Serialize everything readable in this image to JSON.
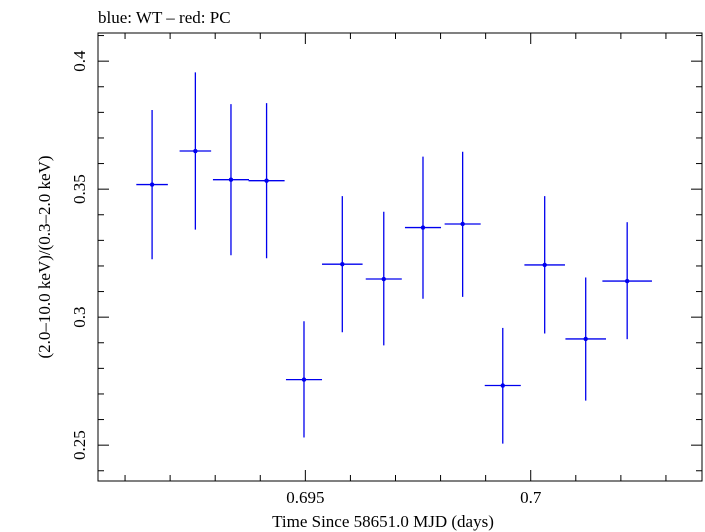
{
  "chart_data": {
    "type": "scatter",
    "title": "blue: WT – red: PC",
    "xlabel": "Time Since 58651.0 MJD (days)",
    "ylabel": "(2.0–10.0 keV)/(0.3–2.0 keV)",
    "xlim": [
      0.6904,
      0.7038
    ],
    "ylim": [
      0.236,
      0.411
    ],
    "x_ticks": [
      0.695,
      0.7
    ],
    "x_tick_labels": [
      "0.695",
      "0.7"
    ],
    "y_ticks": [
      0.25,
      0.3,
      0.35,
      0.4
    ],
    "y_tick_labels": [
      "0.25",
      "0.3",
      "0.35",
      "0.4"
    ],
    "grid": false,
    "series": [
      {
        "color": "#0000ee",
        "points": [
          {
            "x": 0.6916,
            "xerr": 0.00035,
            "y": 0.3518,
            "ylo": 0.3226,
            "yhi": 0.3809
          },
          {
            "x": 0.69256,
            "xerr": 0.00035,
            "y": 0.3649,
            "ylo": 0.3342,
            "yhi": 0.3956
          },
          {
            "x": 0.69335,
            "xerr": 0.0004,
            "y": 0.3537,
            "ylo": 0.3242,
            "yhi": 0.3832
          },
          {
            "x": 0.69414,
            "xerr": 0.0004,
            "y": 0.3533,
            "ylo": 0.323,
            "yhi": 0.3836
          },
          {
            "x": 0.69497,
            "xerr": 0.0004,
            "y": 0.2756,
            "ylo": 0.253,
            "yhi": 0.2984
          },
          {
            "x": 0.69582,
            "xerr": 0.00045,
            "y": 0.3207,
            "ylo": 0.2941,
            "yhi": 0.3473
          },
          {
            "x": 0.69674,
            "xerr": 0.0004,
            "y": 0.3149,
            "ylo": 0.289,
            "yhi": 0.3412
          },
          {
            "x": 0.69761,
            "xerr": 0.0004,
            "y": 0.335,
            "ylo": 0.3072,
            "yhi": 0.3627
          },
          {
            "x": 0.69849,
            "xerr": 0.0004,
            "y": 0.3364,
            "ylo": 0.3079,
            "yhi": 0.3646
          },
          {
            "x": 0.69938,
            "xerr": 0.0004,
            "y": 0.2733,
            "ylo": 0.2506,
            "yhi": 0.2958
          },
          {
            "x": 0.70031,
            "xerr": 0.00045,
            "y": 0.3204,
            "ylo": 0.2936,
            "yhi": 0.3473
          },
          {
            "x": 0.70122,
            "xerr": 0.00045,
            "y": 0.2915,
            "ylo": 0.2674,
            "yhi": 0.3155
          },
          {
            "x": 0.70214,
            "xerr": 0.00055,
            "y": 0.3141,
            "ylo": 0.2914,
            "yhi": 0.3371
          }
        ]
      }
    ]
  }
}
